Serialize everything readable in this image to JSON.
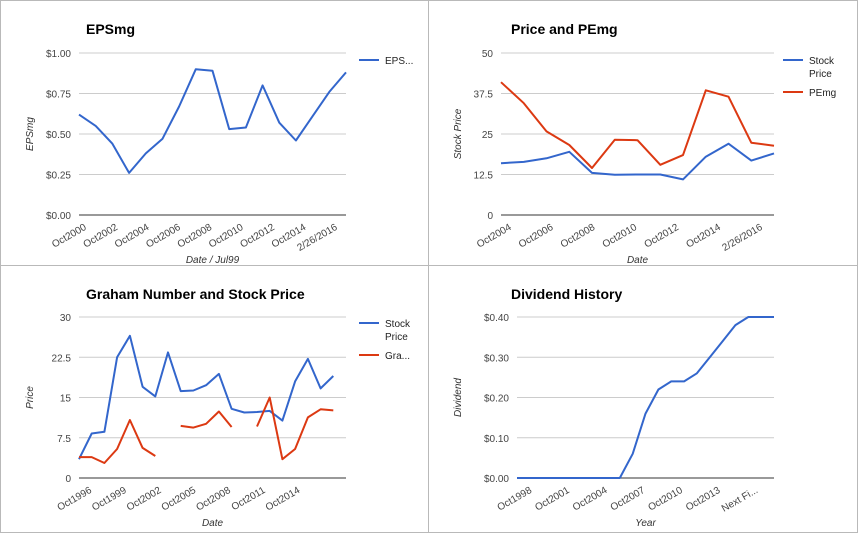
{
  "chart_data": [
    {
      "type": "line",
      "title": "EPSmg",
      "xlabel": "Date / Jul99",
      "ylabel": "EPSmg",
      "xticks": [
        "Oct2000",
        "Oct2002",
        "Oct2004",
        "Oct2006",
        "Oct2008",
        "Oct2010",
        "Oct2012",
        "Oct2014",
        "2/26/2016"
      ],
      "yticks": [
        "$0.00",
        "$0.25",
        "$0.50",
        "$0.75",
        "$1.00"
      ],
      "ylim": [
        0,
        1.0
      ],
      "x": [
        0,
        1,
        2,
        3,
        4,
        5,
        6,
        7,
        8,
        9,
        10,
        11,
        12,
        13,
        14,
        15,
        16
      ],
      "grid": true,
      "legend_position": "right",
      "series": [
        {
          "name": "EPS...",
          "color": "#3366cc",
          "values": [
            0.62,
            0.55,
            0.44,
            0.26,
            0.38,
            0.47,
            0.67,
            0.9,
            0.89,
            0.53,
            0.54,
            0.8,
            0.57,
            0.46,
            0.61,
            0.76,
            0.88
          ]
        }
      ]
    },
    {
      "type": "line",
      "title": "Price and PEmg",
      "xlabel": "Date",
      "ylabel": "Stock Price",
      "xticks": [
        "Oct2004",
        "Oct2006",
        "Oct2008",
        "Oct2010",
        "Oct2012",
        "Oct2014",
        "2/26/2016"
      ],
      "yticks": [
        "0",
        "12.5",
        "25",
        "37.5",
        "50"
      ],
      "ylim": [
        0,
        50
      ],
      "x": [
        0,
        1,
        2,
        3,
        4,
        5,
        6,
        7,
        8,
        9,
        10,
        11,
        12
      ],
      "grid": true,
      "legend_position": "right",
      "series": [
        {
          "name": "Stock Price",
          "color": "#3366cc",
          "values": [
            16.0,
            16.4,
            17.5,
            19.5,
            13.0,
            12.4,
            12.5,
            12.5,
            11.0,
            18.0,
            22.0,
            16.8,
            19.0
          ]
        },
        {
          "name": "PEmg",
          "color": "#dc3912",
          "values": [
            41.0,
            34.5,
            25.8,
            21.6,
            14.5,
            23.2,
            23.1,
            15.5,
            18.5,
            38.5,
            36.5,
            22.3,
            21.4
          ]
        }
      ]
    },
    {
      "type": "line",
      "title": "Graham Number and Stock Price",
      "xlabel": "Date",
      "ylabel": "Price",
      "xticks": [
        "Oct1996",
        "Oct1999",
        "Oct2002",
        "Oct2005",
        "Oct2008",
        "Oct2011",
        "Oct2014"
      ],
      "yticks": [
        "0",
        "7.5",
        "15",
        "22.5",
        "30"
      ],
      "ylim": [
        0,
        30
      ],
      "x": [
        0,
        1,
        2,
        3,
        4,
        5,
        6,
        7,
        8,
        9,
        10,
        11,
        12,
        13,
        14,
        15,
        16,
        17,
        18,
        19,
        20,
        21
      ],
      "grid": true,
      "legend_position": "right",
      "series": [
        {
          "name": "Stock Price",
          "color": "#3366cc",
          "values": [
            3.5,
            8.3,
            8.6,
            22.5,
            26.5,
            17.0,
            15.2,
            23.4,
            16.2,
            16.3,
            17.3,
            19.4,
            12.9,
            12.2,
            12.3,
            12.5,
            10.7,
            18.0,
            22.2,
            16.7,
            19.0,
            null
          ]
        },
        {
          "name": "Gra...",
          "color": "#dc3912",
          "values": [
            3.9,
            3.9,
            2.8,
            5.4,
            10.8,
            5.6,
            4.1,
            null,
            9.7,
            9.4,
            10.1,
            12.4,
            9.5,
            null,
            9.6,
            15.0,
            3.5,
            5.4,
            11.3,
            12.8,
            12.6,
            null
          ]
        }
      ]
    },
    {
      "type": "line",
      "title": "Dividend History",
      "xlabel": "Year",
      "ylabel": "Dividend",
      "xticks": [
        "Oct1998",
        "Oct2001",
        "Oct2004",
        "Oct2007",
        "Oct2010",
        "Oct2013",
        "Next Fi..."
      ],
      "yticks": [
        "$0.00",
        "$0.10",
        "$0.20",
        "$0.30",
        "$0.40"
      ],
      "ylim": [
        0,
        0.4
      ],
      "x": [
        0,
        1,
        2,
        3,
        4,
        5,
        6,
        7,
        8,
        9,
        10,
        11,
        12,
        13,
        14,
        15,
        16,
        17,
        18,
        19,
        20
      ],
      "grid": true,
      "legend_position": "none",
      "series": [
        {
          "name": "",
          "color": "#3366cc",
          "values": [
            0,
            0,
            0,
            0,
            0,
            0,
            0,
            0,
            0,
            0.06,
            0.16,
            0.22,
            0.24,
            0.24,
            0.26,
            0.3,
            0.34,
            0.38,
            0.4,
            0.4,
            0.4
          ]
        }
      ]
    }
  ]
}
